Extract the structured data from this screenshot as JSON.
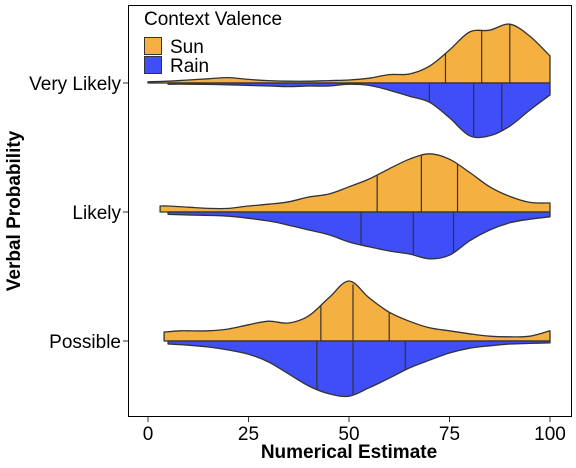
{
  "chart_data": {
    "type": "violin",
    "subtype": "split-violin with quartile lines",
    "xlabel": "Numerical Estimate",
    "ylabel": "Verbal Probability",
    "xlim": [
      0,
      100
    ],
    "x_ticks": [
      0,
      25,
      50,
      75,
      100
    ],
    "categories": [
      "Very Likely",
      "Likely",
      "Possible"
    ],
    "legend": {
      "title": "Context Valence",
      "position": "top-left",
      "entries": [
        "Sun",
        "Rain"
      ]
    },
    "grid": false,
    "series": [
      {
        "name": "Sun",
        "side": "upper",
        "color": "#F5B042",
        "groups": [
          {
            "category": "Very Likely",
            "range": [
              0,
              100
            ],
            "quartiles": [
              74,
              83,
              90
            ],
            "density": [
              [
                0,
                0.02
              ],
              [
                5,
                0.03
              ],
              [
                10,
                0.05
              ],
              [
                15,
                0.07
              ],
              [
                20,
                0.09
              ],
              [
                25,
                0.06
              ],
              [
                30,
                0.04
              ],
              [
                35,
                0.03
              ],
              [
                40,
                0.03
              ],
              [
                45,
                0.04
              ],
              [
                50,
                0.05
              ],
              [
                55,
                0.08
              ],
              [
                60,
                0.14
              ],
              [
                65,
                0.15
              ],
              [
                70,
                0.28
              ],
              [
                75,
                0.55
              ],
              [
                80,
                0.85
              ],
              [
                85,
                0.88
              ],
              [
                90,
                0.98
              ],
              [
                95,
                0.78
              ],
              [
                100,
                0.45
              ]
            ]
          },
          {
            "category": "Likely",
            "range": [
              3,
              100
            ],
            "quartiles": [
              57,
              68,
              77
            ],
            "density": [
              [
                3,
                0.1
              ],
              [
                5,
                0.1
              ],
              [
                10,
                0.08
              ],
              [
                15,
                0.06
              ],
              [
                20,
                0.06
              ],
              [
                25,
                0.1
              ],
              [
                30,
                0.13
              ],
              [
                35,
                0.17
              ],
              [
                40,
                0.25
              ],
              [
                45,
                0.3
              ],
              [
                50,
                0.42
              ],
              [
                55,
                0.55
              ],
              [
                60,
                0.72
              ],
              [
                65,
                0.88
              ],
              [
                70,
                0.97
              ],
              [
                75,
                0.88
              ],
              [
                80,
                0.66
              ],
              [
                85,
                0.42
              ],
              [
                90,
                0.26
              ],
              [
                95,
                0.16
              ],
              [
                100,
                0.15
              ]
            ]
          },
          {
            "category": "Possible",
            "range": [
              4,
              100
            ],
            "quartiles": [
              43,
              51,
              60
            ],
            "density": [
              [
                4,
                0.15
              ],
              [
                8,
                0.17
              ],
              [
                10,
                0.17
              ],
              [
                15,
                0.17
              ],
              [
                20,
                0.2
              ],
              [
                25,
                0.27
              ],
              [
                30,
                0.33
              ],
              [
                35,
                0.3
              ],
              [
                40,
                0.42
              ],
              [
                45,
                0.72
              ],
              [
                50,
                1.0
              ],
              [
                55,
                0.72
              ],
              [
                60,
                0.48
              ],
              [
                65,
                0.33
              ],
              [
                70,
                0.22
              ],
              [
                75,
                0.17
              ],
              [
                80,
                0.12
              ],
              [
                85,
                0.08
              ],
              [
                90,
                0.07
              ],
              [
                95,
                0.08
              ],
              [
                100,
                0.17
              ]
            ]
          }
        ]
      },
      {
        "name": "Rain",
        "side": "lower",
        "color": "#3F4EF7",
        "groups": [
          {
            "category": "Very Likely",
            "range": [
              5,
              100
            ],
            "quartiles": [
              70,
              81,
              88
            ],
            "density": [
              [
                5,
                0.02
              ],
              [
                10,
                0.02
              ],
              [
                20,
                0.03
              ],
              [
                30,
                0.05
              ],
              [
                35,
                0.06
              ],
              [
                40,
                0.05
              ],
              [
                45,
                0.05
              ],
              [
                50,
                0.02
              ],
              [
                55,
                0.04
              ],
              [
                60,
                0.12
              ],
              [
                65,
                0.22
              ],
              [
                70,
                0.32
              ],
              [
                75,
                0.58
              ],
              [
                80,
                0.88
              ],
              [
                85,
                0.88
              ],
              [
                90,
                0.72
              ],
              [
                95,
                0.45
              ],
              [
                100,
                0.2
              ]
            ]
          },
          {
            "category": "Likely",
            "range": [
              5,
              100
            ],
            "quartiles": [
              53,
              66,
              76
            ],
            "density": [
              [
                5,
                0.04
              ],
              [
                10,
                0.05
              ],
              [
                20,
                0.07
              ],
              [
                30,
                0.15
              ],
              [
                35,
                0.22
              ],
              [
                40,
                0.3
              ],
              [
                45,
                0.38
              ],
              [
                50,
                0.5
              ],
              [
                55,
                0.58
              ],
              [
                60,
                0.65
              ],
              [
                65,
                0.7
              ],
              [
                70,
                0.78
              ],
              [
                75,
                0.72
              ],
              [
                80,
                0.48
              ],
              [
                85,
                0.3
              ],
              [
                90,
                0.18
              ],
              [
                95,
                0.12
              ],
              [
                100,
                0.08
              ]
            ]
          },
          {
            "category": "Possible",
            "range": [
              5,
              100
            ],
            "quartiles": [
              42,
              51,
              64
            ],
            "density": [
              [
                5,
                0.05
              ],
              [
                10,
                0.07
              ],
              [
                15,
                0.1
              ],
              [
                20,
                0.15
              ],
              [
                25,
                0.22
              ],
              [
                30,
                0.35
              ],
              [
                35,
                0.55
              ],
              [
                40,
                0.75
              ],
              [
                45,
                0.88
              ],
              [
                50,
                0.92
              ],
              [
                55,
                0.78
              ],
              [
                60,
                0.62
              ],
              [
                65,
                0.45
              ],
              [
                70,
                0.32
              ],
              [
                75,
                0.2
              ],
              [
                80,
                0.12
              ],
              [
                85,
                0.08
              ],
              [
                90,
                0.05
              ],
              [
                95,
                0.04
              ],
              [
                100,
                0.03
              ]
            ]
          }
        ]
      }
    ]
  }
}
